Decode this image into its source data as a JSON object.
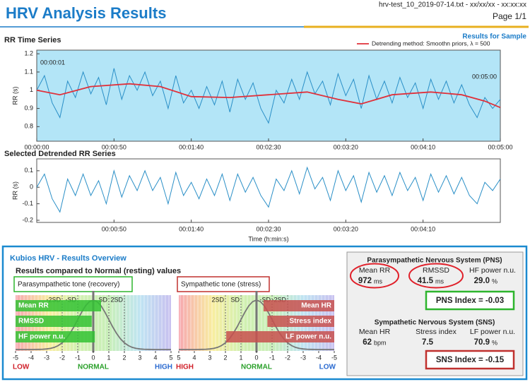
{
  "header": {
    "title": "HRV Analysis Results",
    "file": "hrv-test_10_2019-07-14.txt - xx/xx/xx - xx:xx:xx",
    "page": "Page 1/1",
    "sample": "Results for Sample"
  },
  "chart_data": [
    {
      "type": "line",
      "title": "RR Time Series",
      "y_label": "RR (s)",
      "annotations": [
        "00:00:01",
        "00:05:00"
      ],
      "background": "#b3e5f7",
      "xlim": [
        0,
        300
      ],
      "ylim": [
        0.72,
        1.22
      ],
      "xticks": [
        {
          "value": 0,
          "label": "00:00:00"
        },
        {
          "value": 50,
          "label": "00:00:50"
        },
        {
          "value": 100,
          "label": "00:01:40"
        },
        {
          "value": 150,
          "label": "00:02:30"
        },
        {
          "value": 200,
          "label": "00:03:20"
        },
        {
          "value": 250,
          "label": "00:04:10"
        },
        {
          "value": 300,
          "label": "00:05:00"
        }
      ],
      "yticks": [
        0.8,
        0.9,
        1,
        1.1,
        1.2
      ],
      "series": [
        {
          "color": "#2a8fc7",
          "x": [
            0,
            5,
            10,
            15,
            20,
            25,
            30,
            35,
            40,
            45,
            50,
            55,
            60,
            65,
            70,
            75,
            80,
            85,
            90,
            95,
            100,
            105,
            110,
            115,
            120,
            125,
            130,
            135,
            140,
            145,
            150,
            155,
            160,
            165,
            170,
            175,
            180,
            185,
            190,
            195,
            200,
            205,
            210,
            215,
            220,
            225,
            230,
            235,
            240,
            245,
            250,
            255,
            260,
            265,
            270,
            275,
            280,
            285,
            290,
            295,
            300
          ],
          "values": [
            1.0,
            1.08,
            0.93,
            0.85,
            1.05,
            0.96,
            1.1,
            0.98,
            1.07,
            0.92,
            1.12,
            0.95,
            1.08,
            1.0,
            1.1,
            0.97,
            1.05,
            0.9,
            1.08,
            0.93,
            1.0,
            0.9,
            1.02,
            0.92,
            1.05,
            0.88,
            1.06,
            0.95,
            1.04,
            0.9,
            0.82,
            1.0,
            0.93,
            1.06,
            0.95,
            1.1,
            0.98,
            1.05,
            0.92,
            1.09,
            0.97,
            1.06,
            0.9,
            1.08,
            0.95,
            1.05,
            0.93,
            1.07,
            0.96,
            1.04,
            0.9,
            1.06,
            0.95,
            1.05,
            0.93,
            1.03,
            0.92,
            0.85,
            0.96,
            0.9,
            0.95
          ]
        },
        {
          "name": "Detrending method: Smoothn priors,   λ = 500",
          "color": "#e0303a",
          "x": [
            0,
            15,
            35,
            60,
            80,
            100,
            125,
            150,
            175,
            195,
            210,
            230,
            255,
            275,
            290,
            300
          ],
          "values": [
            1.0,
            0.975,
            1.02,
            1.035,
            1.02,
            0.965,
            0.96,
            0.975,
            0.99,
            0.95,
            0.925,
            0.975,
            0.99,
            0.975,
            0.94,
            0.905
          ]
        }
      ]
    },
    {
      "type": "line",
      "title": "Selected Detrended RR Series",
      "y_label": "RR (s)",
      "x_label": "Time (h:min:s)",
      "background": "#ffffff",
      "xlim": [
        0,
        300
      ],
      "ylim": [
        -0.213,
        0.172
      ],
      "xticks": [
        {
          "value": 50,
          "label": "00:00:50"
        },
        {
          "value": 100,
          "label": "00:01:40"
        },
        {
          "value": 150,
          "label": "00:02:30"
        },
        {
          "value": 200,
          "label": "00:03:20"
        },
        {
          "value": 250,
          "label": "00:04:10"
        }
      ],
      "yticks": [
        -0.2,
        -0.1,
        0,
        0.1
      ],
      "series": [
        {
          "color": "#2a8fc7",
          "x": [
            0,
            5,
            10,
            15,
            20,
            25,
            30,
            35,
            40,
            45,
            50,
            55,
            60,
            65,
            70,
            75,
            80,
            85,
            90,
            95,
            100,
            105,
            110,
            115,
            120,
            125,
            130,
            135,
            140,
            145,
            150,
            155,
            160,
            165,
            170,
            175,
            180,
            185,
            190,
            195,
            200,
            205,
            210,
            215,
            220,
            225,
            230,
            235,
            240,
            245,
            250,
            255,
            260,
            265,
            270,
            275,
            280,
            285,
            290,
            295,
            300
          ],
          "values": [
            0.0,
            0.08,
            -0.07,
            -0.15,
            0.05,
            -0.05,
            0.08,
            -0.05,
            0.04,
            -0.1,
            0.1,
            -0.06,
            0.07,
            -0.02,
            0.1,
            -0.02,
            0.06,
            -0.1,
            0.09,
            -0.05,
            0.03,
            -0.07,
            0.05,
            -0.05,
            0.08,
            -0.08,
            0.08,
            -0.03,
            0.06,
            -0.05,
            -0.12,
            0.05,
            -0.02,
            0.1,
            -0.04,
            0.12,
            -0.01,
            0.06,
            -0.08,
            0.1,
            -0.02,
            0.07,
            -0.09,
            0.09,
            -0.03,
            0.07,
            -0.05,
            0.09,
            -0.02,
            0.06,
            -0.08,
            0.08,
            -0.03,
            0.07,
            -0.04,
            0.06,
            -0.05,
            -0.1,
            0.03,
            -0.02,
            0.05
          ]
        }
      ]
    }
  ],
  "overview": {
    "title": "Kubios HRV - Results Overview",
    "subtitle": "Results compared to Normal (resting) values",
    "gauges": [
      {
        "tone": "Parasympathetic tone (recovery)",
        "tone_color": "#2db52d",
        "bar_color": "#33c233",
        "xlim": [
          -5,
          5
        ],
        "xticks": [
          -5,
          -4,
          -3,
          -2,
          -1,
          0,
          1,
          2,
          3,
          4,
          5
        ],
        "sd_labels": [
          {
            "value": -2,
            "label": "-2SD"
          },
          {
            "value": -1,
            "label": "-SD"
          },
          {
            "value": 1,
            "label": "SD"
          },
          {
            "value": 2,
            "label": "2SD"
          }
        ],
        "bars": [
          {
            "label": "Mean RR",
            "value": 0.5
          },
          {
            "label": "RMSSD",
            "value": -0.1
          },
          {
            "label": "HF power n.u.",
            "value": 0.1
          }
        ],
        "scale_labels": [
          "LOW",
          "NORMAL",
          "HIGH"
        ]
      },
      {
        "tone": "Sympathetic tone (stress)",
        "tone_color": "#c0302e",
        "bar_color": "#c8504d",
        "xlim": [
          5,
          -5
        ],
        "xticks": [
          5,
          4,
          3,
          2,
          1,
          0,
          -1,
          -2,
          -3,
          -4,
          -5
        ],
        "sd_labels": [
          {
            "value": 2,
            "label": "2SD"
          },
          {
            "value": 1,
            "label": "SD"
          },
          {
            "value": -1,
            "label": "-SD"
          },
          {
            "value": -2,
            "label": "-2SD"
          }
        ],
        "bars": [
          {
            "label": "Mean HR",
            "value": -0.45
          },
          {
            "label": "Stress index",
            "value": -0.7
          },
          {
            "label": "LF power n.u.",
            "value": 1.95
          }
        ],
        "scale_labels": [
          "HIGH",
          "NORMAL",
          "LOW"
        ]
      }
    ],
    "pns": {
      "title": "Parasympathetic Nervous System (PNS)",
      "items": [
        {
          "label": "Mean RR",
          "value": "972",
          "unit": "ms"
        },
        {
          "label": "RMSSD",
          "value": "41.5",
          "unit": "ms"
        },
        {
          "label": "HF power n.u.",
          "value": "29.0",
          "unit": "%"
        }
      ],
      "index": "PNS Index = -0.03"
    },
    "sns": {
      "title": "Sympathetic Nervous System (SNS)",
      "items": [
        {
          "label": "Mean HR",
          "value": "62",
          "unit": "bpm"
        },
        {
          "label": "Stress index",
          "value": "7.5",
          "unit": ""
        },
        {
          "label": "LF power n.u.",
          "value": "70.9",
          "unit": "%"
        }
      ],
      "index": "SNS Index = -0.15"
    }
  }
}
